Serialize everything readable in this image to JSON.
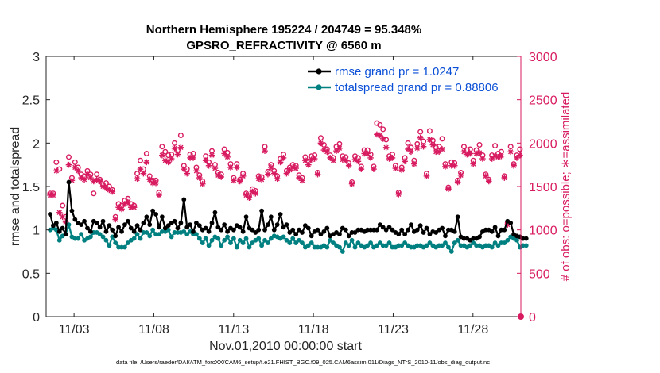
{
  "chart_data": {
    "type": "line",
    "title": "Northern Hemisphere 195224 / 204749 = 95.348%",
    "subtitle": "GPSRO_REFRACTIVITY @ 6560 m",
    "xlabel": "Nov.01,2010 00:00:00 start",
    "ylabel_left": "rmse and totalspread",
    "ylabel_right": "# of obs: o=possible; ∗=assimilated",
    "footnote": "data file: /Users/raeder/DAI/ATM_forcXX/CAM6_setup/f.e21.FHIST_BGC.f09_025.CAM6assim.011/Diags_NTrS_2010-11/obs_diag_output.nc",
    "x_tick_labels": [
      "11/03",
      "11/08",
      "11/13",
      "11/18",
      "11/23",
      "11/28"
    ],
    "x_tick_values": [
      3,
      8,
      13,
      18,
      23,
      28
    ],
    "xlim": [
      1.25,
      31.0
    ],
    "ylim_left": [
      0,
      3
    ],
    "ylim_right": [
      0,
      3000
    ],
    "y_ticks_left": [
      "0",
      "0.5",
      "1",
      "1.5",
      "2",
      "2.5",
      "3"
    ],
    "y_ticks_right": [
      "0",
      "500",
      "1000",
      "1500",
      "2000",
      "2500",
      "3000"
    ],
    "colors": {
      "rmse": "#000000",
      "totalspread": "#008080",
      "obs": "#d81b60",
      "legend_text": "#0a4fd6"
    },
    "legend_position": "top-right",
    "series": [
      {
        "name": "rmse grand pr = 1.0247",
        "axis": "left",
        "marker": "filled circle",
        "values": [
          1.18,
          1.05,
          1.08,
          0.98,
          1.02,
          0.95,
          1.55,
          1.22,
          1.12,
          1.08,
          1.06,
          1.1,
          1.02,
          0.98,
          1.1,
          1.08,
          1.03,
          1.1,
          0.98,
          1.05,
          1.0,
          0.93,
          1.03,
          0.98,
          1.06,
          1.1,
          1.02,
          0.98,
          1.05,
          1.0,
          1.08,
          1.15,
          1.06,
          1.22,
          1.18,
          1.03,
          1.15,
          1.02,
          1.05,
          1.08,
          1.1,
          1.02,
          1.08,
          1.35,
          1.03,
          1.06,
          0.98,
          1.08,
          1.05,
          1.0,
          1.02,
          0.98,
          1.08,
          1.2,
          1.03,
          1.0,
          1.06,
          0.98,
          1.02,
          1.0,
          1.05,
          1.03,
          0.98,
          1.15,
          1.02,
          1.0,
          0.97,
          1.0,
          1.22,
          1.0,
          1.06,
          1.15,
          1.0,
          1.06,
          1.18,
          1.03,
          1.06,
          0.97,
          1.0,
          0.95,
          1.0,
          0.97,
          1.05,
          1.02,
          0.93,
          0.98,
          1.0,
          0.95,
          0.98,
          1.02,
          0.93,
          0.95,
          0.97,
          0.95,
          1.02,
          1.0,
          0.93,
          0.97,
          0.97,
          1.0,
          1.0,
          0.98,
          1.0,
          1.0,
          1.0,
          1.0,
          1.06,
          1.03,
          1.0,
          1.03,
          1.0,
          0.97,
          0.95,
          1.0,
          0.95,
          1.0,
          1.06,
          0.98,
          1.0,
          1.05,
          0.97,
          1.02,
          0.95,
          0.98,
          0.97,
          1.0,
          1.02,
          0.93,
          1.0,
          1.0,
          0.98,
          1.15,
          0.92,
          0.9,
          0.9,
          0.88,
          0.9,
          0.9,
          0.92,
          0.98,
          1.0,
          1.0,
          0.98,
          1.03,
          0.93,
          1.0,
          1.0,
          1.1,
          1.08,
          0.95,
          0.93,
          0.92,
          0.9,
          0.9
        ]
      },
      {
        "name": "totalspread grand pr = 0.88806",
        "axis": "left",
        "marker": "filled circle",
        "values": [
          1.0,
          1.02,
          1.0,
          0.88,
          0.93,
          0.95,
          1.06,
          0.92,
          0.9,
          0.9,
          0.95,
          0.88,
          0.9,
          0.92,
          0.97,
          0.97,
          0.95,
          0.92,
          0.88,
          0.82,
          0.92,
          0.85,
          0.8,
          0.8,
          0.8,
          0.85,
          0.88,
          0.9,
          0.95,
          0.9,
          0.97,
          0.97,
          0.93,
          1.0,
          0.95,
          0.95,
          0.98,
          0.98,
          1.0,
          0.92,
          0.97,
          0.97,
          0.97,
          0.98,
          0.95,
          0.98,
          0.95,
          0.95,
          0.9,
          0.85,
          0.9,
          0.82,
          0.88,
          0.92,
          0.9,
          0.82,
          0.88,
          0.92,
          0.85,
          0.9,
          0.8,
          0.88,
          0.85,
          0.9,
          0.8,
          0.85,
          0.88,
          0.9,
          0.82,
          0.88,
          0.85,
          0.9,
          0.93,
          0.92,
          0.9,
          0.92,
          0.88,
          0.85,
          0.9,
          0.85,
          0.88,
          0.85,
          0.8,
          0.82,
          0.85,
          0.8,
          0.8,
          0.8,
          0.82,
          0.8,
          0.88,
          0.85,
          0.82,
          0.8,
          0.75,
          0.85,
          0.82,
          0.88,
          0.8,
          0.85,
          0.82,
          0.8,
          0.82,
          0.85,
          0.8,
          0.82,
          0.85,
          0.82,
          0.82,
          0.85,
          0.8,
          0.8,
          0.82,
          0.82,
          0.85,
          0.82,
          0.8,
          0.8,
          0.82,
          0.82,
          0.8,
          0.82,
          0.85,
          0.82,
          0.8,
          0.82,
          0.82,
          0.85,
          0.8,
          0.75,
          0.85,
          0.88,
          0.82,
          0.82,
          0.8,
          0.82,
          0.85,
          0.82,
          0.82,
          0.8,
          0.82,
          0.82,
          0.8,
          0.85,
          0.82,
          0.85,
          0.85,
          0.88,
          0.92,
          0.9,
          0.88,
          0.8,
          0.82,
          0.82
        ]
      },
      {
        "name": "# of obs possible",
        "axis": "right",
        "marker": "open circle",
        "values": [
          1420,
          1420,
          1780,
          1700,
          1280,
          1150,
          1840,
          1600,
          1780,
          1720,
          1640,
          1620,
          1680,
          1640,
          1420,
          1640,
          1580,
          1520,
          1540,
          1500,
          1460,
          1150,
          1300,
          1280,
          1340,
          1360,
          1300,
          1280,
          1650,
          1800,
          1700,
          1880,
          1620,
          1570,
          1570,
          1430,
          1960,
          1900,
          1860,
          1870,
          2000,
          1920,
          2090,
          1740,
          1700,
          1870,
          1880,
          1720,
          1630,
          1560,
          1850,
          1780,
          1910,
          1750,
          1660,
          1640,
          1930,
          1890,
          1760,
          1600,
          1760,
          1580,
          1650,
          1420,
          1390,
          1470,
          1450,
          1620,
          1610,
          1960,
          1670,
          1750,
          1680,
          1620,
          1820,
          1870,
          1680,
          1720,
          1750,
          1740,
          1630,
          1600,
          1840,
          1790,
          1850,
          1860,
          1660,
          2060,
          1980,
          1930,
          1860,
          1830,
          1960,
          1990,
          1850,
          1840,
          1770,
          1550,
          1850,
          1830,
          1730,
          1920,
          1920,
          1870,
          1730,
          2230,
          2210,
          2160,
          2040,
          1850,
          1870,
          1740,
          1430,
          1720,
          1830,
          2000,
          1950,
          1800,
          1990,
          2130,
          2020,
          1650,
          2140,
          2030,
          1950,
          1960,
          2050,
          1760,
          1490,
          1780,
          1770,
          1570,
          1660,
          1960,
          1920,
          1930,
          1800,
          1920,
          1980,
          1860,
          1640,
          1580,
          1860,
          1970,
          1880,
          1900,
          1620,
          1080,
          1960,
          1760,
          1860,
          1930
        ]
      },
      {
        "name": "# of obs assimilated",
        "axis": "right",
        "marker": "asterisk",
        "values": [
          1400,
          1400,
          1680,
          1200,
          1150,
          1090,
          1750,
          1570,
          1720,
          1680,
          1600,
          1580,
          1640,
          1600,
          1560,
          1580,
          1560,
          1500,
          1480,
          1460,
          1440,
          1120,
          1260,
          1240,
          1300,
          1320,
          1260,
          1260,
          1590,
          1700,
          1650,
          1780,
          1580,
          1540,
          1540,
          1400,
          1860,
          1800,
          1780,
          1820,
          1940,
          1870,
          1950,
          1700,
          1650,
          1830,
          1830,
          1680,
          1600,
          1530,
          1800,
          1740,
          1860,
          1710,
          1630,
          1610,
          1880,
          1840,
          1720,
          1570,
          1720,
          1560,
          1620,
          1400,
          1370,
          1440,
          1420,
          1590,
          1580,
          1910,
          1640,
          1720,
          1650,
          1590,
          1780,
          1830,
          1650,
          1690,
          1720,
          1710,
          1600,
          1570,
          1800,
          1750,
          1810,
          1820,
          1640,
          2000,
          1920,
          1900,
          1830,
          1800,
          1910,
          1940,
          1810,
          1800,
          1740,
          1530,
          1810,
          1790,
          1700,
          1880,
          1880,
          1830,
          1700,
          2100,
          2090,
          2050,
          1950,
          1820,
          1830,
          1710,
          1410,
          1690,
          1790,
          1930,
          1900,
          1760,
          1940,
          2060,
          1960,
          1620,
          2040,
          1980,
          1900,
          1900,
          1930,
          1730,
          1470,
          1740,
          1740,
          1550,
          1630,
          1900,
          1870,
          1880,
          1760,
          1880,
          1890,
          1820,
          1620,
          1560,
          1820,
          1850,
          1840,
          1850,
          1600,
          1060,
          1900,
          1740,
          1830,
          1860
        ]
      }
    ]
  }
}
